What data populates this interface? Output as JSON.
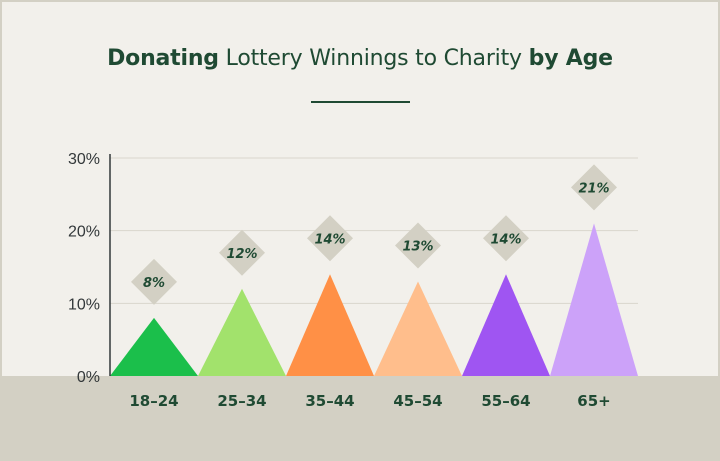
{
  "title_parts": [
    {
      "text": "Donating",
      "bold": true
    },
    {
      "text": " Lottery Winnings to Charity ",
      "bold": false
    },
    {
      "text": "by Age",
      "bold": true
    }
  ],
  "colors": {
    "background": "#f2f0eb",
    "band": "#d3d0c4",
    "text": "#1f4a33",
    "diamond": "#d3d0c4"
  },
  "chart_data": {
    "type": "bar",
    "title": "Donating Lottery Winnings to Charity by Age",
    "categories": [
      "18–24",
      "25–34",
      "35–44",
      "45–54",
      "55–64",
      "65+"
    ],
    "values": [
      8,
      12,
      14,
      13,
      14,
      21
    ],
    "data_labels": [
      "8%",
      "12%",
      "14%",
      "13%",
      "14%",
      "21%"
    ],
    "bar_colors": [
      "#1bbf4b",
      "#a2e26c",
      "#ff9046",
      "#ffbe8c",
      "#9f55f2",
      "#cca2f9"
    ],
    "ylim": [
      0,
      30
    ],
    "yticks": [
      0,
      10,
      20,
      30
    ],
    "ytick_labels": [
      "0%",
      "10%",
      "20%",
      "30%"
    ],
    "grid": true,
    "xlabel": "",
    "ylabel": ""
  }
}
